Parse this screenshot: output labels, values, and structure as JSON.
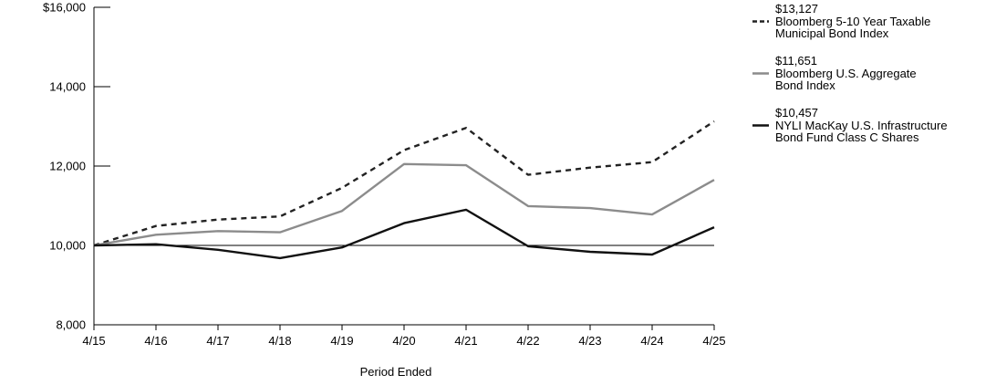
{
  "chart_data": {
    "type": "line",
    "title": "",
    "xlabel": "Period Ended",
    "ylabel": "",
    "categories": [
      "4/15",
      "4/16",
      "4/17",
      "4/18",
      "4/19",
      "4/20",
      "4/21",
      "4/22",
      "4/23",
      "4/24",
      "4/25"
    ],
    "ylim": [
      8000,
      16000
    ],
    "yticks": [
      {
        "value": 8000,
        "label": "8,000"
      },
      {
        "value": 10000,
        "label": "10,000"
      },
      {
        "value": 12000,
        "label": "12,000"
      },
      {
        "value": 14000,
        "label": "14,000"
      },
      {
        "value": 16000,
        "label": "$16,000"
      }
    ],
    "reference_line": 10000,
    "grid": false,
    "legend_position": "right",
    "series": [
      {
        "name": "Bloomberg 5-10 Year Taxable Municipal Bond Index",
        "legend_lines": [
          "Bloomberg 5-10 Year Taxable",
          "Municipal Bond Index"
        ],
        "end_value_label": "$13,127",
        "color": "#222222",
        "style": "dashed",
        "values": [
          10000,
          10490,
          10650,
          10730,
          11450,
          12400,
          12960,
          11780,
          11960,
          12100,
          13127
        ]
      },
      {
        "name": "Bloomberg U.S. Aggregate Bond Index",
        "legend_lines": [
          "Bloomberg U.S. Aggregate",
          "Bond Index"
        ],
        "end_value_label": "$11,651",
        "color": "#8c8c8c",
        "style": "solid",
        "values": [
          10000,
          10270,
          10360,
          10330,
          10870,
          12050,
          12020,
          10990,
          10940,
          10780,
          11651
        ]
      },
      {
        "name": "NYLI MacKay U.S. Infrastructure Bond Fund Class C Shares",
        "legend_lines": [
          "NYLI MacKay U.S. Infrastructure",
          "Bond Fund Class C Shares"
        ],
        "end_value_label": "$10,457",
        "color": "#111111",
        "style": "solid",
        "values": [
          10000,
          10030,
          9890,
          9680,
          9950,
          10560,
          10900,
          9980,
          9840,
          9770,
          10457
        ]
      }
    ]
  }
}
